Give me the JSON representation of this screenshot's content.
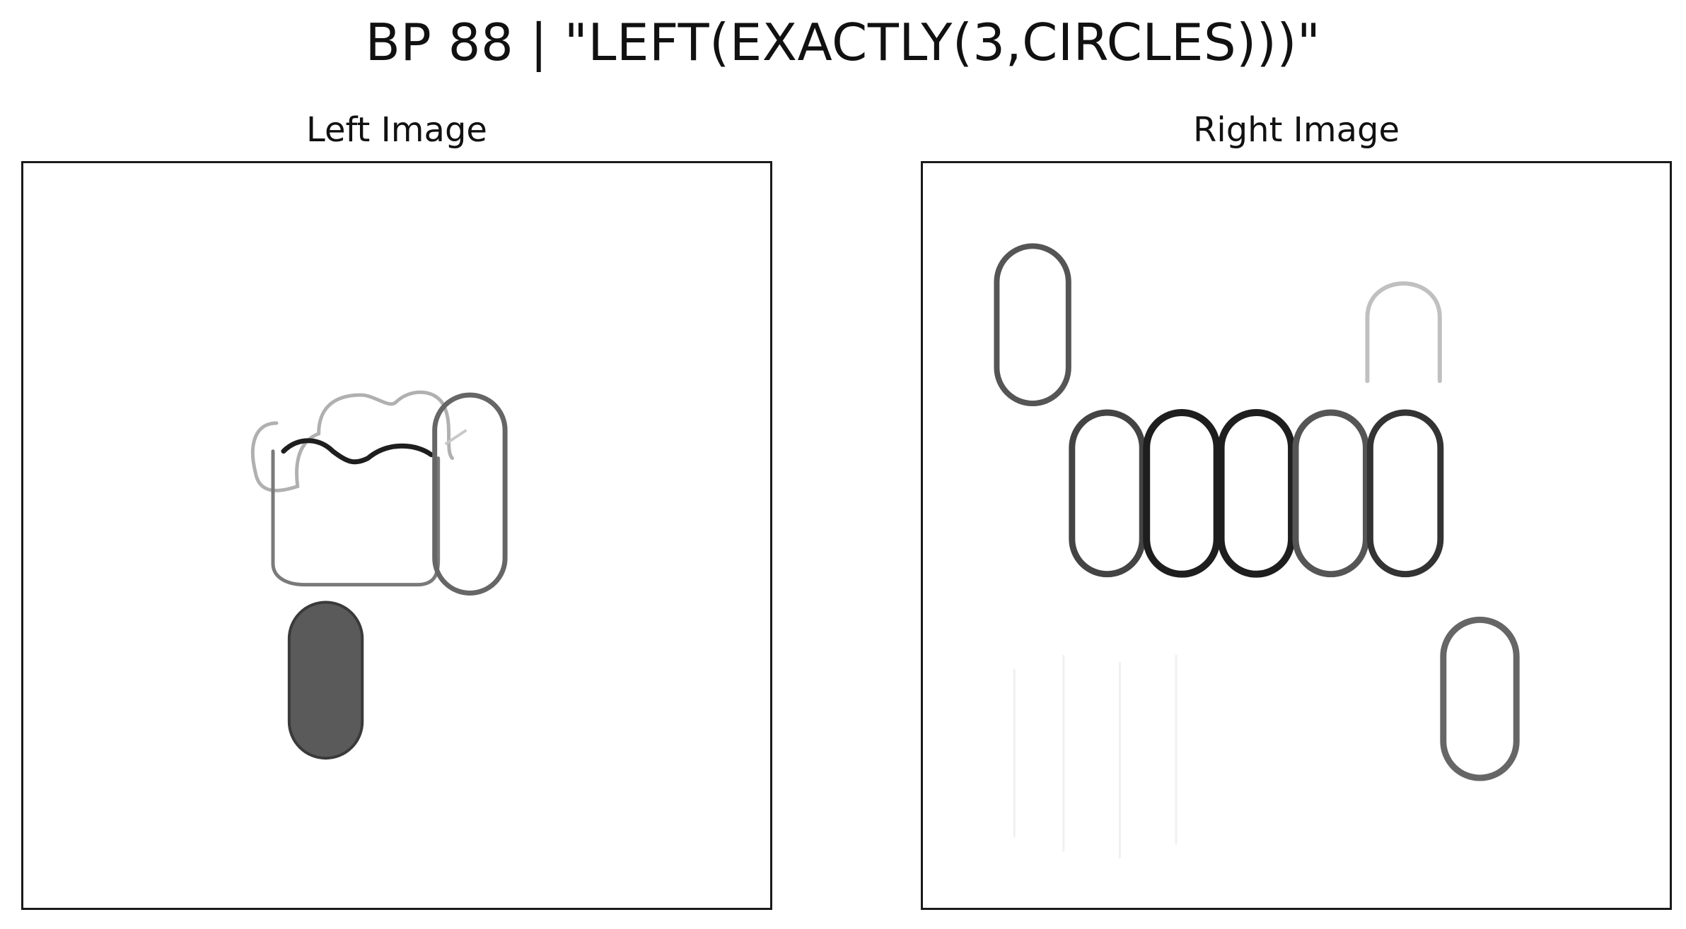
{
  "figure": {
    "title": "BP 88 | \"LEFT(EXACTLY(3,CIRCLES)))\"",
    "panels": [
      {
        "title": "Left Image"
      },
      {
        "title": "Right Image"
      }
    ]
  },
  "colors": {
    "stroke_dark": "#1e1e1e",
    "stroke_mid": "#555555",
    "stroke_light": "#b8b8b8",
    "fill_gray": "#5a5a5a"
  }
}
